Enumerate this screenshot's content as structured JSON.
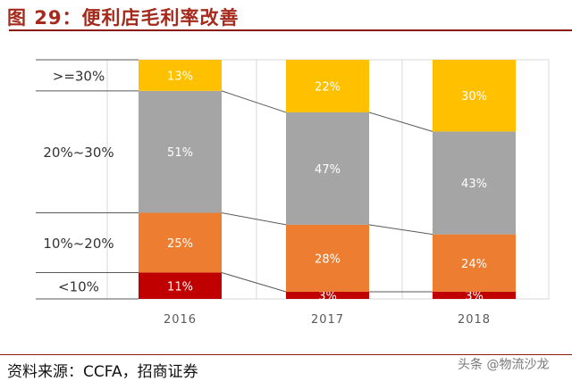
{
  "title": "图 29：便利店毛利率改善",
  "source": "资料来源：CCFA，招商证券",
  "watermark": "头条 @物流沙龙",
  "chart_data": {
    "type": "bar",
    "stacked": true,
    "percent_stacked": true,
    "categories": [
      "2016",
      "2017",
      "2018"
    ],
    "series": [
      {
        "name": "<10%",
        "values": [
          11,
          3,
          3
        ],
        "color": "#c00000"
      },
      {
        "name": "10%~20%",
        "values": [
          25,
          28,
          24
        ],
        "color": "#ed7d31"
      },
      {
        "name": "20%~30%",
        "values": [
          51,
          47,
          43
        ],
        "color": "#a5a5a5"
      },
      {
        "name": ">=30%",
        "values": [
          13,
          22,
          30
        ],
        "color": "#ffc000"
      }
    ],
    "data_labels": true,
    "label_suffix": "%",
    "legend_placement": "left",
    "ylim": [
      0,
      100
    ],
    "grid": "vertical",
    "connector_lines": true
  }
}
